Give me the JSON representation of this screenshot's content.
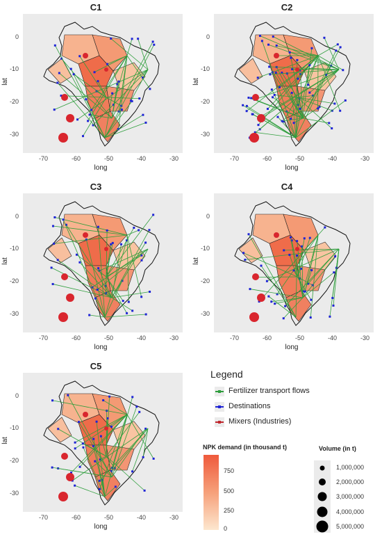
{
  "panels": [
    {
      "id": "c1",
      "title": "C1"
    },
    {
      "id": "c2",
      "title": "C2"
    },
    {
      "id": "c3",
      "title": "C3"
    },
    {
      "id": "c4",
      "title": "C4"
    },
    {
      "id": "c5",
      "title": "C5"
    }
  ],
  "axes": {
    "xlabel": "long",
    "ylabel": "lat",
    "xticks": [
      "-70",
      "-60",
      "-50",
      "-40",
      "-30"
    ],
    "yticks": [
      "0",
      "-10",
      "-20",
      "-30"
    ]
  },
  "legend": {
    "title": "Legend",
    "items": [
      {
        "label": "Fertilizer transport flows",
        "color": "#2e9e3c"
      },
      {
        "label": "Destinations",
        "color": "#1f24d6"
      },
      {
        "label": "Mixers (Industries)",
        "color": "#c0272d"
      }
    ]
  },
  "npk_scale": {
    "title": "NPK demand (in thousand t)",
    "ticks": [
      "750",
      "500",
      "250",
      "0"
    ],
    "color_high": "#ef5a3c",
    "color_low": "#fde7cf"
  },
  "volume_scale": {
    "title": "Volume (in t)",
    "ticks": [
      "1,000,000",
      "2,000,000",
      "3,000,000",
      "4,000,000",
      "5,000,000"
    ]
  },
  "colors": {
    "panel_bg": "#ebebeb",
    "flow": "#2e9e3c",
    "dest": "#1f24d6",
    "mixer": "#d9262e"
  }
}
